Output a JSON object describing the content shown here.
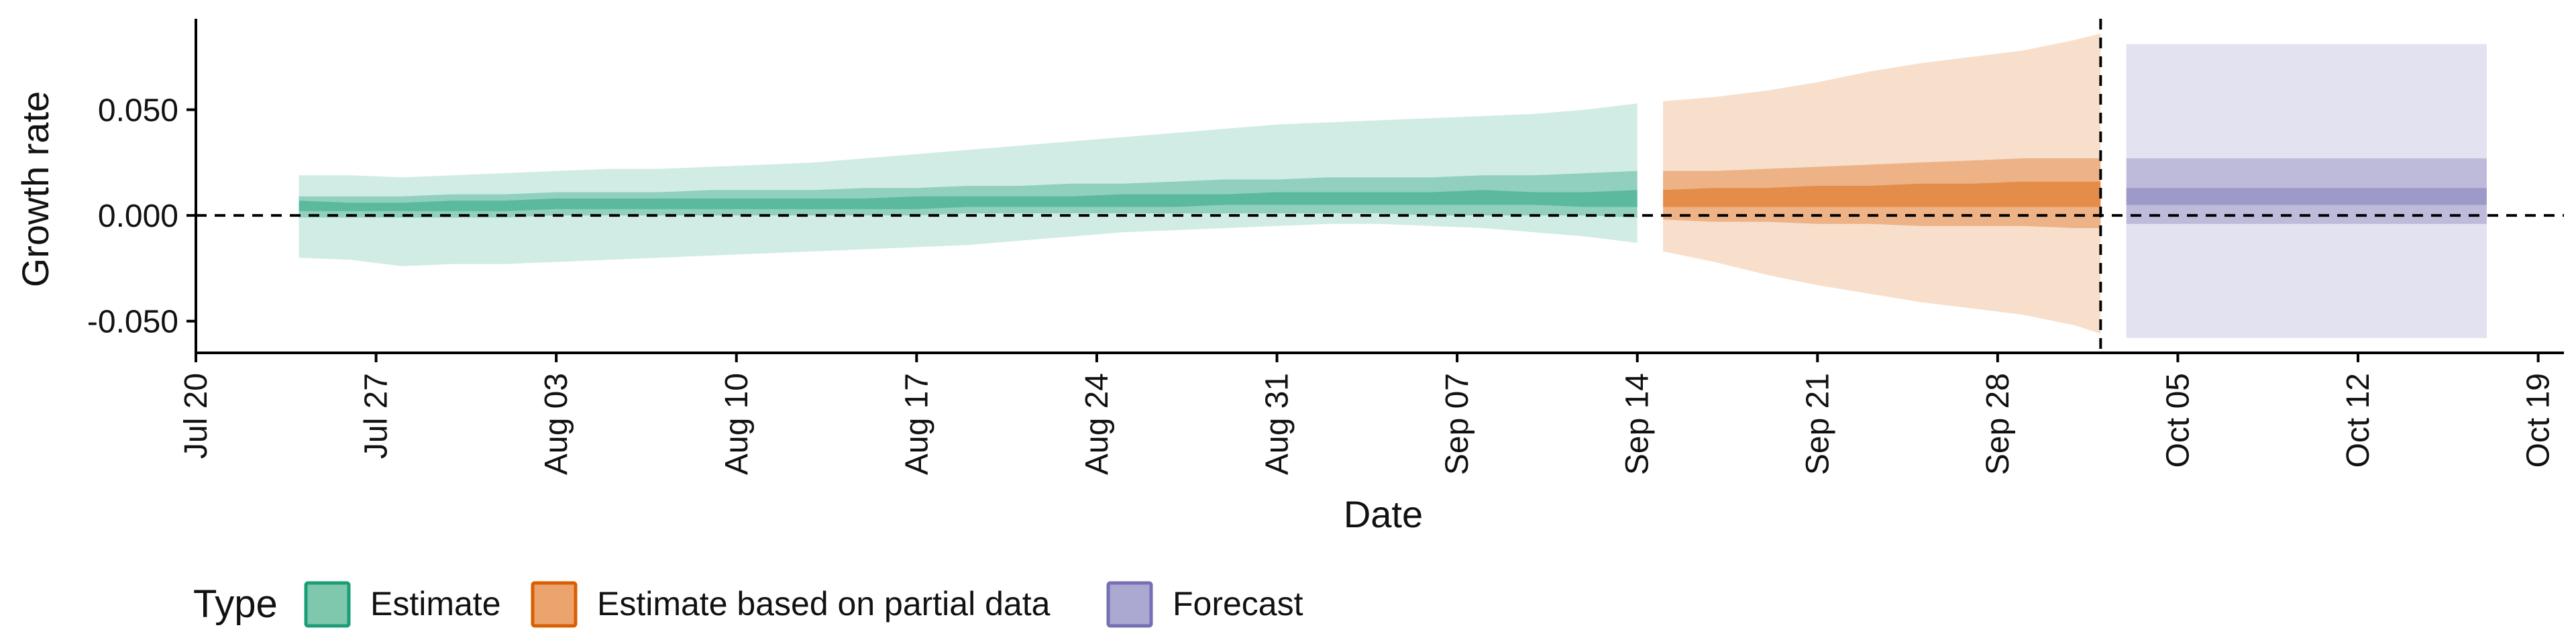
{
  "chart_data": {
    "type": "area",
    "xlabel": "Date",
    "ylabel": "Growth rate",
    "x_type": "date",
    "xlim": [
      "2020-07-20",
      "2020-10-20"
    ],
    "ylim": [
      -0.065,
      0.093
    ],
    "x_ticks": [
      {
        "date": "2020-07-20",
        "label": "Jul 20"
      },
      {
        "date": "2020-07-27",
        "label": "Jul 27"
      },
      {
        "date": "2020-08-03",
        "label": "Aug 03"
      },
      {
        "date": "2020-08-10",
        "label": "Aug 10"
      },
      {
        "date": "2020-08-17",
        "label": "Aug 17"
      },
      {
        "date": "2020-08-24",
        "label": "Aug 24"
      },
      {
        "date": "2020-08-31",
        "label": "Aug 31"
      },
      {
        "date": "2020-09-07",
        "label": "Sep 07"
      },
      {
        "date": "2020-09-14",
        "label": "Sep 14"
      },
      {
        "date": "2020-09-21",
        "label": "Sep 21"
      },
      {
        "date": "2020-09-28",
        "label": "Sep 28"
      },
      {
        "date": "2020-10-05",
        "label": "Oct 05"
      },
      {
        "date": "2020-10-12",
        "label": "Oct 12"
      },
      {
        "date": "2020-10-19",
        "label": "Oct 19"
      }
    ],
    "y_ticks": [
      {
        "value": 0.05,
        "label": "0.050"
      },
      {
        "value": 0.0,
        "label": "0.000"
      },
      {
        "value": -0.05,
        "label": "-0.050"
      }
    ],
    "reference_lines": {
      "horizontal_y": 0.0,
      "vertical_date": "2020-10-02",
      "style": "dashed"
    },
    "grid": false,
    "legend": {
      "title": "Type",
      "placement": "bottom-left",
      "entries": [
        {
          "label": "Estimate",
          "fill": "#7fc8ad",
          "stroke": "#1b9e77"
        },
        {
          "label": "Estimate based on partial data",
          "fill": "#eba46e",
          "stroke": "#d95f02"
        },
        {
          "label": "Forecast",
          "fill": "#aba8d2",
          "stroke": "#7570b3"
        }
      ]
    },
    "series": [
      {
        "type": "Estimate",
        "color": "#1b9e77",
        "x": [
          "2020-07-24",
          "2020-07-26",
          "2020-07-28",
          "2020-07-30",
          "2020-08-01",
          "2020-08-03",
          "2020-08-05",
          "2020-08-07",
          "2020-08-09",
          "2020-08-11",
          "2020-08-13",
          "2020-08-15",
          "2020-08-17",
          "2020-08-19",
          "2020-08-21",
          "2020-08-23",
          "2020-08-25",
          "2020-08-27",
          "2020-08-29",
          "2020-08-31",
          "2020-09-02",
          "2020-09-04",
          "2020-09-06",
          "2020-09-08",
          "2020-09-10",
          "2020-09-12",
          "2020-09-14"
        ],
        "median": [
          0.004,
          0.004,
          0.004,
          0.004,
          0.004,
          0.005,
          0.005,
          0.005,
          0.005,
          0.005,
          0.005,
          0.005,
          0.005,
          0.006,
          0.006,
          0.006,
          0.007,
          0.007,
          0.007,
          0.008,
          0.008,
          0.008,
          0.008,
          0.008,
          0.008,
          0.007,
          0.008
        ],
        "ci20": [
          [
            0.002,
            0.007
          ],
          [
            0.002,
            0.006
          ],
          [
            0.002,
            0.006
          ],
          [
            0.002,
            0.007
          ],
          [
            0.002,
            0.007
          ],
          [
            0.003,
            0.008
          ],
          [
            0.003,
            0.008
          ],
          [
            0.003,
            0.008
          ],
          [
            0.003,
            0.008
          ],
          [
            0.003,
            0.008
          ],
          [
            0.003,
            0.008
          ],
          [
            0.003,
            0.008
          ],
          [
            0.003,
            0.009
          ],
          [
            0.004,
            0.009
          ],
          [
            0.004,
            0.009
          ],
          [
            0.004,
            0.009
          ],
          [
            0.004,
            0.01
          ],
          [
            0.004,
            0.01
          ],
          [
            0.005,
            0.01
          ],
          [
            0.005,
            0.011
          ],
          [
            0.005,
            0.011
          ],
          [
            0.005,
            0.011
          ],
          [
            0.005,
            0.011
          ],
          [
            0.005,
            0.012
          ],
          [
            0.005,
            0.011
          ],
          [
            0.004,
            0.011
          ],
          [
            0.004,
            0.012
          ]
        ],
        "ci50": [
          [
            -0.001,
            0.009
          ],
          [
            -0.001,
            0.009
          ],
          [
            -0.001,
            0.009
          ],
          [
            -0.001,
            0.01
          ],
          [
            -0.001,
            0.01
          ],
          [
            0.0,
            0.011
          ],
          [
            0.0,
            0.011
          ],
          [
            0.0,
            0.011
          ],
          [
            0.0,
            0.012
          ],
          [
            0.0,
            0.012
          ],
          [
            0.0,
            0.012
          ],
          [
            0.0,
            0.013
          ],
          [
            0.0,
            0.013
          ],
          [
            0.001,
            0.014
          ],
          [
            0.001,
            0.014
          ],
          [
            0.001,
            0.015
          ],
          [
            0.001,
            0.015
          ],
          [
            0.001,
            0.016
          ],
          [
            0.001,
            0.017
          ],
          [
            0.001,
            0.017
          ],
          [
            0.001,
            0.018
          ],
          [
            0.001,
            0.018
          ],
          [
            0.0,
            0.018
          ],
          [
            0.0,
            0.019
          ],
          [
            0.0,
            0.019
          ],
          [
            0.0,
            0.02
          ],
          [
            -0.001,
            0.021
          ]
        ],
        "ci90": [
          [
            -0.02,
            0.019
          ],
          [
            -0.021,
            0.019
          ],
          [
            -0.024,
            0.018
          ],
          [
            -0.023,
            0.019
          ],
          [
            -0.023,
            0.02
          ],
          [
            -0.022,
            0.021
          ],
          [
            -0.021,
            0.022
          ],
          [
            -0.02,
            0.022
          ],
          [
            -0.019,
            0.023
          ],
          [
            -0.018,
            0.024
          ],
          [
            -0.017,
            0.025
          ],
          [
            -0.016,
            0.027
          ],
          [
            -0.015,
            0.029
          ],
          [
            -0.014,
            0.031
          ],
          [
            -0.012,
            0.033
          ],
          [
            -0.01,
            0.035
          ],
          [
            -0.008,
            0.037
          ],
          [
            -0.007,
            0.039
          ],
          [
            -0.006,
            0.041
          ],
          [
            -0.005,
            0.043
          ],
          [
            -0.004,
            0.044
          ],
          [
            -0.004,
            0.045
          ],
          [
            -0.005,
            0.046
          ],
          [
            -0.006,
            0.047
          ],
          [
            -0.008,
            0.048
          ],
          [
            -0.01,
            0.05
          ],
          [
            -0.013,
            0.053
          ]
        ]
      },
      {
        "type": "Estimate based on partial data",
        "color": "#d95f02",
        "x": [
          "2020-09-15",
          "2020-09-17",
          "2020-09-19",
          "2020-09-21",
          "2020-09-23",
          "2020-09-25",
          "2020-09-27",
          "2020-09-29",
          "2020-10-01",
          "2020-10-02"
        ],
        "median": [
          0.008,
          0.009,
          0.009,
          0.009,
          0.009,
          0.01,
          0.01,
          0.01,
          0.01,
          0.01
        ],
        "ci20": [
          [
            0.004,
            0.012
          ],
          [
            0.004,
            0.013
          ],
          [
            0.004,
            0.013
          ],
          [
            0.004,
            0.014
          ],
          [
            0.004,
            0.014
          ],
          [
            0.004,
            0.015
          ],
          [
            0.004,
            0.015
          ],
          [
            0.004,
            0.016
          ],
          [
            0.004,
            0.016
          ],
          [
            0.004,
            0.016
          ]
        ],
        "ci50": [
          [
            -0.002,
            0.021
          ],
          [
            -0.003,
            0.021
          ],
          [
            -0.003,
            0.022
          ],
          [
            -0.004,
            0.023
          ],
          [
            -0.004,
            0.024
          ],
          [
            -0.005,
            0.025
          ],
          [
            -0.005,
            0.026
          ],
          [
            -0.005,
            0.027
          ],
          [
            -0.006,
            0.027
          ],
          [
            -0.006,
            0.027
          ]
        ],
        "ci90": [
          [
            -0.017,
            0.054
          ],
          [
            -0.022,
            0.056
          ],
          [
            -0.028,
            0.059
          ],
          [
            -0.033,
            0.063
          ],
          [
            -0.037,
            0.068
          ],
          [
            -0.041,
            0.072
          ],
          [
            -0.044,
            0.075
          ],
          [
            -0.047,
            0.078
          ],
          [
            -0.052,
            0.083
          ],
          [
            -0.056,
            0.086
          ]
        ]
      },
      {
        "type": "Forecast",
        "color": "#7570b3",
        "x": [
          "2020-10-03",
          "2020-10-17"
        ],
        "median": [
          0.011,
          0.011
        ],
        "ci20": [
          [
            0.005,
            0.013
          ],
          [
            0.005,
            0.013
          ]
        ],
        "ci50": [
          [
            -0.004,
            0.027
          ],
          [
            -0.004,
            0.027
          ]
        ],
        "ci90": [
          [
            -0.058,
            0.081
          ],
          [
            -0.058,
            0.081
          ]
        ]
      }
    ]
  }
}
